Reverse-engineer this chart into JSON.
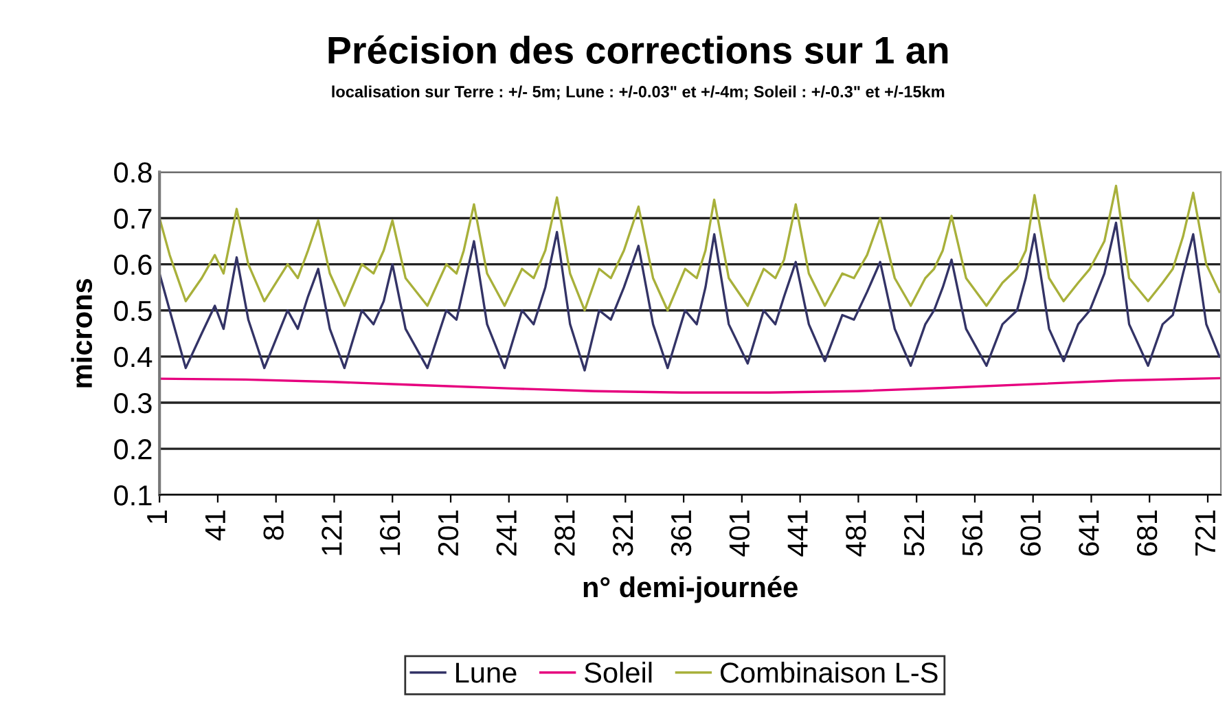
{
  "chart_data": {
    "type": "line",
    "title": "Précision des corrections sur 1 an",
    "subtitle": "localisation sur Terre : +/- 5m; Lune : +/-0.03\" et +/-4m; Soleil : +/-0.3\" et +/-15km",
    "xlabel": "n° demi-journée",
    "ylabel": "microns",
    "xlim": [
      1,
      730
    ],
    "xticks": [
      1,
      41,
      81,
      121,
      161,
      201,
      241,
      281,
      321,
      361,
      401,
      441,
      481,
      521,
      561,
      601,
      641,
      681,
      721
    ],
    "ylim": [
      0.1,
      0.8
    ],
    "yticks": [
      0.1,
      0.2,
      0.3,
      0.4,
      0.5,
      0.6,
      0.7,
      0.8
    ],
    "grid": "y",
    "legend": "bottom",
    "line_style": "solid",
    "series": [
      {
        "name": "Lune",
        "color": "#333366",
        "x": [
          1,
          8,
          19,
          30,
          39,
          45,
          54,
          62,
          73,
          89,
          96,
          103,
          110,
          118,
          128,
          140,
          148,
          155,
          161,
          170,
          185,
          198,
          205,
          210,
          217,
          226,
          238,
          250,
          258,
          266,
          274,
          283,
          293,
          303,
          311,
          320,
          330,
          340,
          350,
          362,
          370,
          376,
          382,
          392,
          405,
          416,
          424,
          430,
          438,
          447,
          458,
          470,
          478,
          487,
          496,
          506,
          517,
          527,
          533,
          539,
          545,
          555,
          569,
          580,
          590,
          596,
          602,
          612,
          622,
          632,
          640,
          650,
          658,
          667,
          680,
          690,
          697,
          704,
          711,
          720,
          729
        ],
        "values": [
          0.58,
          0.5,
          0.375,
          0.45,
          0.51,
          0.46,
          0.615,
          0.48,
          0.375,
          0.5,
          0.46,
          0.53,
          0.59,
          0.46,
          0.375,
          0.5,
          0.47,
          0.52,
          0.6,
          0.46,
          0.375,
          0.5,
          0.48,
          0.55,
          0.65,
          0.47,
          0.375,
          0.5,
          0.47,
          0.55,
          0.67,
          0.47,
          0.37,
          0.5,
          0.48,
          0.55,
          0.64,
          0.47,
          0.375,
          0.5,
          0.47,
          0.55,
          0.665,
          0.47,
          0.385,
          0.5,
          0.47,
          0.53,
          0.605,
          0.47,
          0.39,
          0.49,
          0.48,
          0.54,
          0.605,
          0.46,
          0.38,
          0.47,
          0.5,
          0.55,
          0.61,
          0.46,
          0.38,
          0.47,
          0.5,
          0.57,
          0.665,
          0.46,
          0.39,
          0.47,
          0.5,
          0.58,
          0.69,
          0.47,
          0.38,
          0.47,
          0.49,
          0.58,
          0.665,
          0.47,
          0.4
        ]
      },
      {
        "name": "Soleil",
        "color": "#e6007e",
        "x": [
          1,
          60,
          120,
          180,
          240,
          300,
          360,
          420,
          480,
          540,
          600,
          660,
          729
        ],
        "values": [
          0.352,
          0.35,
          0.345,
          0.338,
          0.331,
          0.325,
          0.322,
          0.322,
          0.325,
          0.332,
          0.34,
          0.348,
          0.353
        ]
      },
      {
        "name": "Combinaison L-S",
        "color": "#a8b03a",
        "x": [
          1,
          8,
          19,
          30,
          39,
          45,
          54,
          62,
          73,
          89,
          96,
          103,
          110,
          118,
          128,
          140,
          148,
          155,
          161,
          170,
          185,
          198,
          205,
          210,
          217,
          226,
          238,
          250,
          258,
          266,
          274,
          283,
          293,
          303,
          311,
          320,
          330,
          340,
          350,
          362,
          370,
          376,
          382,
          392,
          405,
          416,
          424,
          430,
          438,
          447,
          458,
          470,
          478,
          487,
          496,
          506,
          517,
          527,
          533,
          539,
          545,
          555,
          569,
          580,
          590,
          596,
          602,
          612,
          622,
          632,
          640,
          650,
          658,
          667,
          680,
          690,
          697,
          704,
          711,
          720,
          729
        ],
        "values": [
          0.7,
          0.62,
          0.52,
          0.57,
          0.62,
          0.58,
          0.72,
          0.6,
          0.52,
          0.6,
          0.57,
          0.63,
          0.695,
          0.58,
          0.51,
          0.6,
          0.58,
          0.63,
          0.695,
          0.57,
          0.51,
          0.6,
          0.58,
          0.63,
          0.73,
          0.58,
          0.51,
          0.59,
          0.57,
          0.63,
          0.745,
          0.58,
          0.5,
          0.59,
          0.57,
          0.63,
          0.725,
          0.57,
          0.5,
          0.59,
          0.57,
          0.63,
          0.74,
          0.57,
          0.51,
          0.59,
          0.57,
          0.61,
          0.73,
          0.58,
          0.51,
          0.58,
          0.57,
          0.62,
          0.7,
          0.57,
          0.51,
          0.57,
          0.59,
          0.63,
          0.705,
          0.57,
          0.51,
          0.56,
          0.59,
          0.63,
          0.75,
          0.57,
          0.52,
          0.56,
          0.59,
          0.65,
          0.77,
          0.57,
          0.52,
          0.56,
          0.59,
          0.66,
          0.755,
          0.6,
          0.54
        ]
      }
    ]
  }
}
